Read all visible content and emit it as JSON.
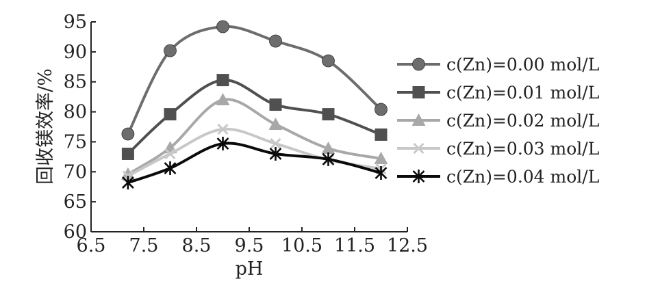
{
  "chart_data": {
    "type": "line",
    "title": "",
    "xlabel": "pH",
    "ylabel": "回收镁效率/%",
    "xlim": [
      6.5,
      12.5
    ],
    "ylim": [
      60,
      95
    ],
    "x_ticks": [
      "6.5",
      "7.5",
      "8.5",
      "9.5",
      "10.5",
      "11.5",
      "12.5"
    ],
    "y_ticks": [
      "60",
      "65",
      "70",
      "75",
      "80",
      "85",
      "90",
      "95"
    ],
    "x": [
      7.2,
      8.0,
      9.0,
      10.0,
      11.0,
      12.0
    ],
    "legend_position": "right",
    "grid": false,
    "series": [
      {
        "name": "c(Zn)=0.00 mol/L",
        "values": [
          76.3,
          90.2,
          94.2,
          91.8,
          88.5,
          80.4
        ],
        "color": "#6d6d6d",
        "marker": "circle"
      },
      {
        "name": "c(Zn)=0.01 mol/L",
        "values": [
          73.0,
          79.6,
          85.3,
          81.2,
          79.6,
          76.2
        ],
        "color": "#505050",
        "marker": "square"
      },
      {
        "name": "c(Zn)=0.02 mol/L",
        "values": [
          69.6,
          74.0,
          82.0,
          77.9,
          73.9,
          72.2
        ],
        "color": "#a8a8a8",
        "marker": "triangle"
      },
      {
        "name": "c(Zn)=0.03 mol/L",
        "values": [
          69.3,
          73.0,
          77.1,
          74.7,
          72.0,
          70.5
        ],
        "color": "#c8c8c8",
        "marker": "x"
      },
      {
        "name": "c(Zn)=0.04 mol/L",
        "values": [
          68.2,
          70.6,
          74.7,
          73.0,
          72.1,
          69.8
        ],
        "color": "#0a0a0a",
        "marker": "star"
      }
    ]
  }
}
